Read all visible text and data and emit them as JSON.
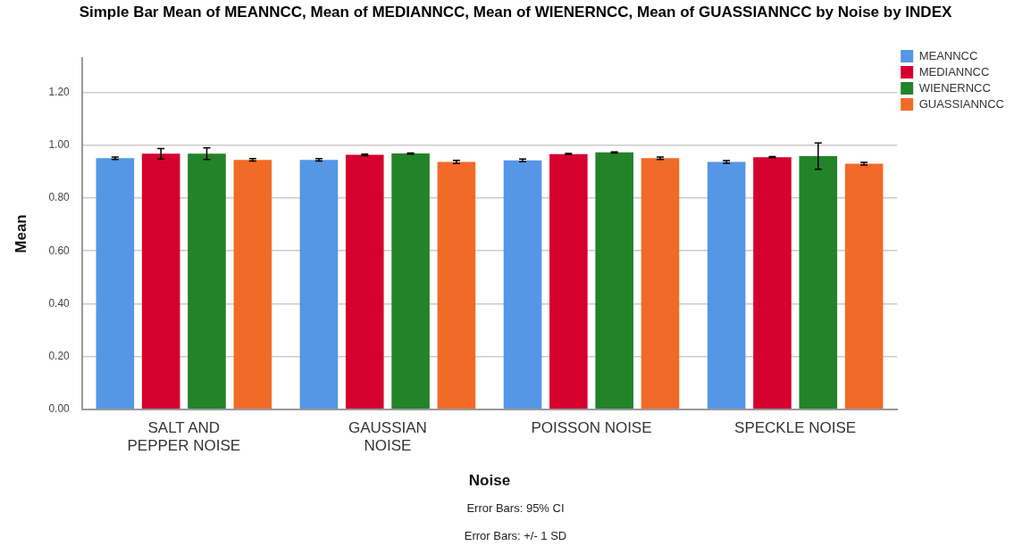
{
  "chart_data": {
    "type": "bar",
    "title": "Simple Bar Mean of MEANNCC, Mean of MEDIANNCC, Mean of WIENERNCC, Mean of GUASSIANNCC by Noise by INDEX",
    "xlabel": "Noise",
    "ylabel": "Mean",
    "categories": [
      "SALT AND PEPPER NOISE",
      "GAUSSIAN NOISE",
      "POISSON NOISE",
      "SPECKLE NOISE"
    ],
    "series": [
      {
        "name": "MEANNCC",
        "color": "#5596e6",
        "values": [
          0.951,
          0.945,
          0.943,
          0.937
        ],
        "errors": [
          0.005,
          0.005,
          0.005,
          0.005
        ]
      },
      {
        "name": "MEDIANNCC",
        "color": "#d6002f",
        "values": [
          0.968,
          0.964,
          0.967,
          0.955
        ],
        "errors": [
          0.02,
          0.003,
          0.002,
          0.002
        ]
      },
      {
        "name": "WIENERNCC",
        "color": "#238329",
        "values": [
          0.968,
          0.969,
          0.973,
          0.959
        ],
        "errors": [
          0.022,
          0.002,
          0.002,
          0.05
        ]
      },
      {
        "name": "GUASSIANNCC",
        "color": "#f26a27",
        "values": [
          0.945,
          0.937,
          0.951,
          0.93
        ],
        "errors": [
          0.005,
          0.006,
          0.005,
          0.005
        ]
      }
    ],
    "ylim": [
      0,
      1.33
    ],
    "yticks": [
      {
        "value": 0,
        "label": "0.00"
      },
      {
        "value": 0.2,
        "label": "0.20"
      },
      {
        "value": 0.4,
        "label": "0.40"
      },
      {
        "value": 0.6,
        "label": "0.60"
      },
      {
        "value": 0.8,
        "label": "0.80"
      },
      {
        "value": 1,
        "label": "1.00"
      },
      {
        "value": 1.2,
        "label": "1.20"
      }
    ],
    "grid": "y",
    "legend": "top right",
    "annotations": [
      "Error Bars: 95% CI",
      "Error Bars: +/- 1 SD"
    ]
  }
}
